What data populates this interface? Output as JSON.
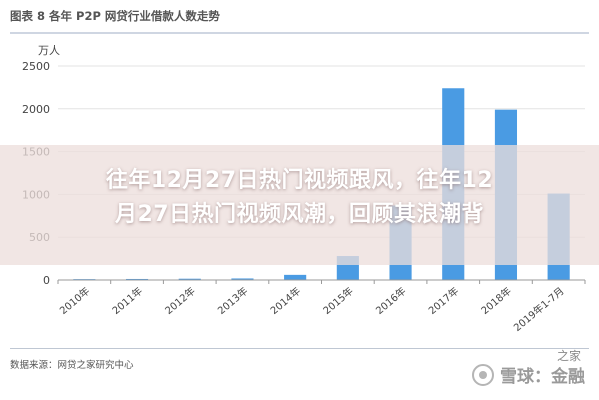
{
  "header": {
    "title": "图表 8 各年 P2P 网贷行业借款人数走势"
  },
  "chart_data": {
    "type": "bar",
    "ylabel": "万人",
    "categories": [
      "2010年",
      "2011年",
      "2012年",
      "2013年",
      "2014年",
      "2015年",
      "2016年",
      "2017年",
      "2018年",
      "2019年1-7月"
    ],
    "values": [
      10,
      12,
      15,
      18,
      60,
      280,
      870,
      2240,
      1990,
      1010
    ],
    "ylim": [
      0,
      2500
    ],
    "yticks": [
      0,
      500,
      1000,
      1500,
      2000,
      2500
    ],
    "grid": true,
    "bar_color": "#4a9be3"
  },
  "overlay": {
    "line1": "往年12月27日热门视频跟风，往年12",
    "line2": "月27日热门视频风潮，回顾其浪潮背"
  },
  "footer": {
    "source": "数据来源：网贷之家研究中心",
    "watermark": "雪球：金融",
    "corner": "之家"
  }
}
